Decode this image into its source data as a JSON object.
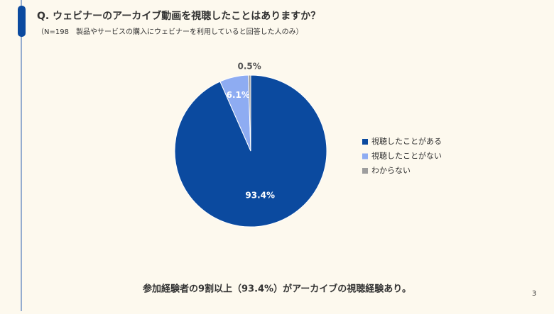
{
  "chart_data": {
    "type": "pie",
    "title": "Q. ウェビナーのアーカイブ動画を視聴したことはありますか？",
    "subtitle": "（N=198　製品やサービスの購入にウェビナーを利用していると回答した人のみ）",
    "categories": [
      "視聴したことがある",
      "視聴したことがない",
      "わからない"
    ],
    "values": [
      93.4,
      6.1,
      0.5
    ],
    "value_labels": [
      "93.4%",
      "6.1%",
      "0.5%"
    ],
    "colors": [
      "#0b4a9f",
      "#8eacf2",
      "#9e9e9e"
    ],
    "legend": "right",
    "annotation": "参加経験者の9割以上（93.4%）がアーカイブの視聴経験あり。"
  },
  "page_number": "3"
}
